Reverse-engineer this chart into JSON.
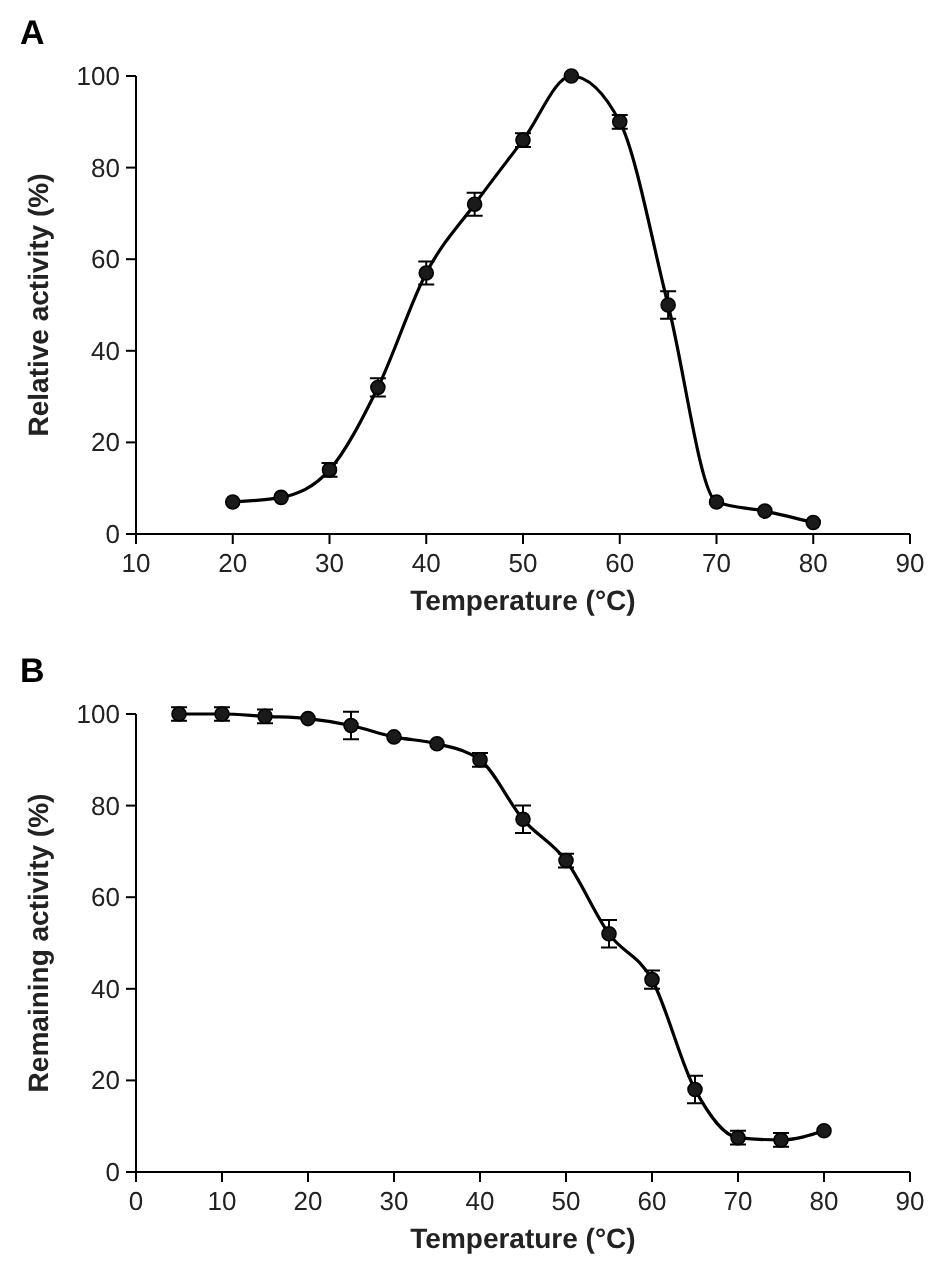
{
  "chart_data": [
    {
      "type": "line",
      "title": "A",
      "xlabel": "Temperature (°C)",
      "ylabel": "Relative activity (%)",
      "xlim": [
        10,
        90
      ],
      "xticks": [
        10,
        20,
        30,
        40,
        50,
        60,
        70,
        80,
        90
      ],
      "ylim": [
        0,
        100
      ],
      "yticks": [
        0,
        20,
        40,
        60,
        80,
        100
      ],
      "grid": false,
      "marker": "circle",
      "line_style": "solid",
      "x": [
        20,
        25,
        30,
        35,
        40,
        45,
        50,
        55,
        60,
        65,
        70,
        75,
        80
      ],
      "series": [
        {
          "color": "#1a1a1a",
          "values": [
            7,
            8,
            14,
            32,
            57,
            72,
            86,
            100,
            90,
            50,
            7,
            5,
            2.5
          ],
          "errors": [
            null,
            null,
            1.5,
            2,
            2.5,
            2.5,
            1.5,
            null,
            1.5,
            3,
            null,
            null,
            null
          ]
        }
      ]
    },
    {
      "type": "line",
      "title": "B",
      "xlabel": "Temperature (°C)",
      "ylabel": "Remaining activity (%)",
      "xlim": [
        0,
        90
      ],
      "xticks": [
        0,
        10,
        20,
        30,
        40,
        50,
        60,
        70,
        80,
        90
      ],
      "ylim": [
        0,
        100
      ],
      "yticks": [
        0,
        20,
        40,
        60,
        80,
        100
      ],
      "grid": false,
      "marker": "circle",
      "line_style": "solid",
      "x": [
        5,
        10,
        15,
        20,
        25,
        30,
        35,
        40,
        45,
        50,
        55,
        60,
        65,
        70,
        75,
        80
      ],
      "series": [
        {
          "color": "#1a1a1a",
          "values": [
            100,
            100,
            99.5,
            99,
            97.5,
            95,
            93.5,
            90,
            77,
            68,
            52,
            42,
            18,
            7.5,
            7,
            9
          ],
          "errors": [
            1.5,
            1.5,
            1.5,
            null,
            3,
            null,
            null,
            1.5,
            3,
            1.5,
            3,
            2,
            3,
            1.5,
            1.5,
            null
          ]
        }
      ]
    }
  ]
}
